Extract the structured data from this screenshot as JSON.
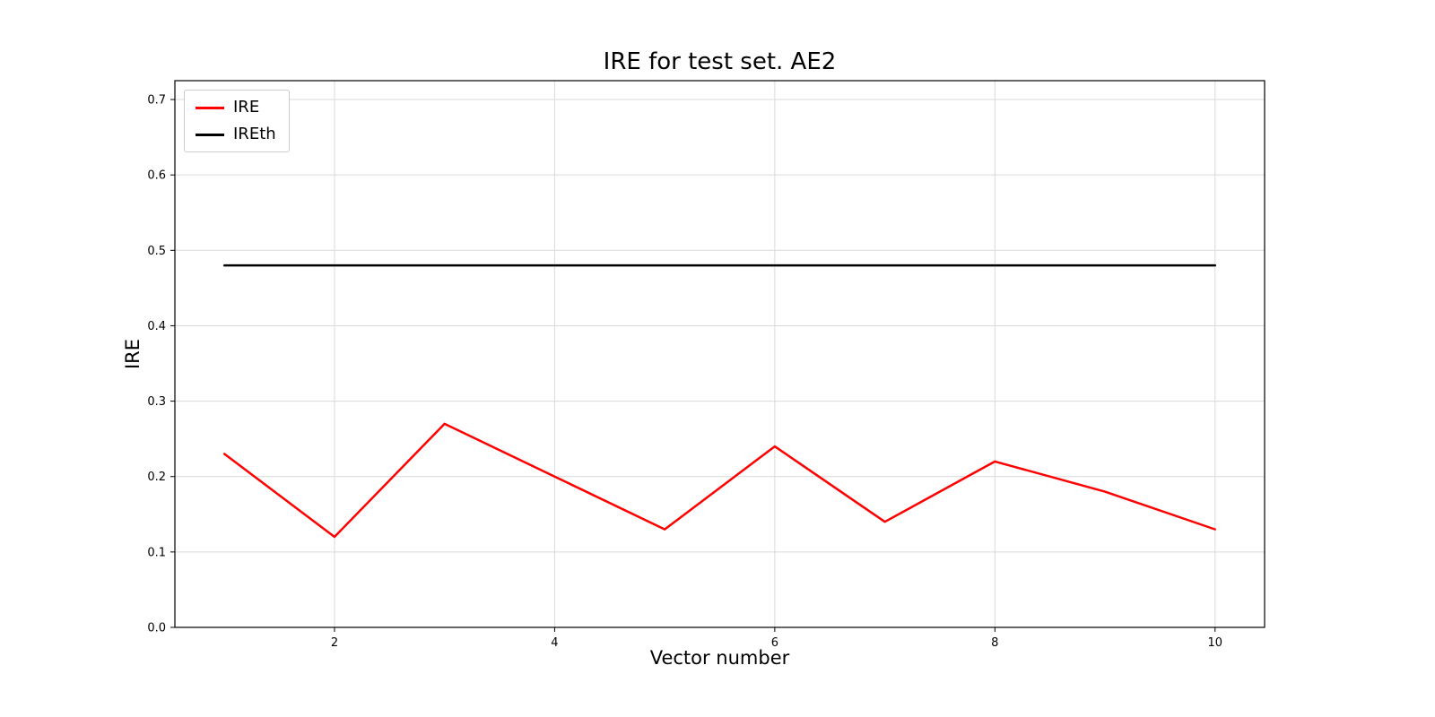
{
  "chart_data": {
    "type": "line",
    "title": "IRE for test set. AE2",
    "xlabel": "Vector number",
    "ylabel": "IRE",
    "x": [
      1,
      2,
      3,
      4,
      5,
      6,
      7,
      8,
      9,
      10
    ],
    "series": [
      {
        "name": "IRE",
        "color": "#ff0000",
        "values": [
          0.23,
          0.12,
          0.27,
          0.2,
          0.13,
          0.24,
          0.14,
          0.22,
          0.18,
          0.13
        ]
      },
      {
        "name": "IREth",
        "color": "#000000",
        "values": [
          0.48,
          0.48,
          0.48,
          0.48,
          0.48,
          0.48,
          0.48,
          0.48,
          0.48,
          0.48
        ]
      }
    ],
    "xlim": [
      0.55,
      10.45
    ],
    "ylim": [
      0.0,
      0.725
    ],
    "xticks": [
      2,
      4,
      6,
      8,
      10
    ],
    "xtick_labels": [
      "2",
      "4",
      "6",
      "8",
      "10"
    ],
    "yticks": [
      0.0,
      0.1,
      0.2,
      0.3,
      0.4,
      0.5,
      0.6,
      0.7
    ],
    "ytick_labels": [
      "0.0",
      "0.1",
      "0.2",
      "0.3",
      "0.4",
      "0.5",
      "0.6",
      "0.7"
    ],
    "grid": true,
    "legend_position": "upper left"
  }
}
